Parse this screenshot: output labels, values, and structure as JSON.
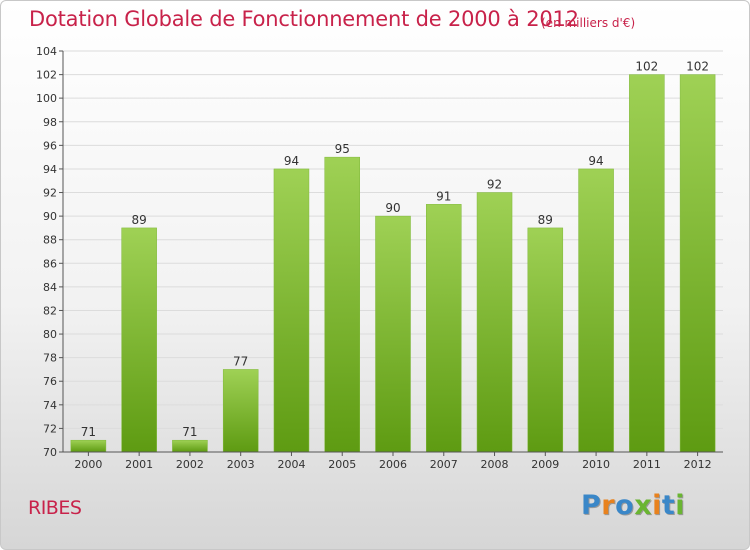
{
  "title": "Dotation Globale de Fonctionnement de 2000 à 2012",
  "unit_note": "(en milliers d'€)",
  "commune": "RIBES",
  "logo": {
    "text": "Proxiti",
    "letter_colors": [
      "#3a87c8",
      "#e8821e",
      "#3a87c8",
      "#6ab532",
      "#e8821e",
      "#3a87c8",
      "#6ab532"
    ]
  },
  "colors": {
    "bar_light": "#9fd155",
    "bar_dark": "#5e9b12",
    "accent": "#c8224a"
  },
  "chart_data": {
    "type": "bar",
    "categories": [
      "2000",
      "2001",
      "2002",
      "2003",
      "2004",
      "2005",
      "2006",
      "2007",
      "2008",
      "2009",
      "2010",
      "2011",
      "2012"
    ],
    "values": [
      71,
      89,
      71,
      77,
      94,
      95,
      90,
      91,
      92,
      89,
      94,
      102,
      102
    ],
    "ylim": [
      70,
      104
    ],
    "yticks": [
      70,
      72,
      74,
      76,
      78,
      80,
      82,
      84,
      86,
      88,
      90,
      92,
      94,
      96,
      98,
      100,
      102,
      104
    ],
    "grid": true,
    "title": "Dotation Globale de Fonctionnement de 2000 à 2012",
    "xlabel": "",
    "ylabel": ""
  }
}
